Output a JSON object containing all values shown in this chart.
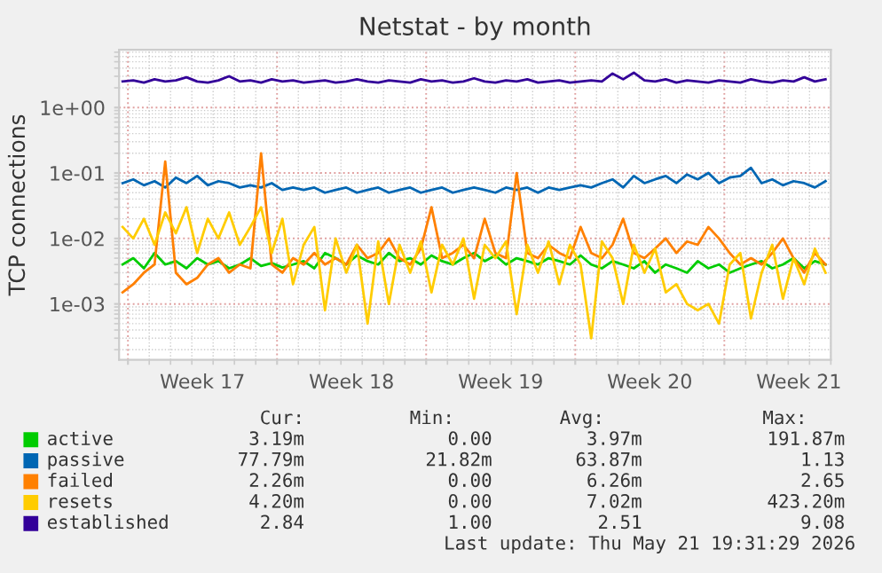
{
  "chart_data": {
    "type": "line",
    "title": "Netstat - by month",
    "ylabel": "TCP connections",
    "log": true,
    "grid": true,
    "legend": "bottom",
    "line_style": "solid",
    "marker": "none",
    "ylim": [
      0.00014,
      7.6
    ],
    "yticks": [
      {
        "value": 1,
        "label": "1e+00"
      },
      {
        "value": 0.1,
        "label": "1e-01"
      },
      {
        "value": 0.01,
        "label": "1e-02"
      },
      {
        "value": 0.001,
        "label": "1e-03"
      }
    ],
    "xlim": [
      "2026-04-19T14:00",
      "2026-05-23T00:00"
    ],
    "xticks": [
      {
        "value": "2026-04-20",
        "label": null
      },
      {
        "value": "2026-04-23T12:00",
        "label": "Week 17"
      },
      {
        "value": "2026-04-27",
        "label": null
      },
      {
        "value": "2026-04-30T12:00",
        "label": "Week 18"
      },
      {
        "value": "2026-05-04",
        "label": null
      },
      {
        "value": "2026-05-07T12:00",
        "label": "Week 19"
      },
      {
        "value": "2026-05-11",
        "label": null
      },
      {
        "value": "2026-05-14T12:00",
        "label": "Week 20"
      },
      {
        "value": "2026-05-18",
        "label": null
      },
      {
        "value": "2026-05-21T12:00",
        "label": "Week 21"
      }
    ],
    "x": [
      "2026-04-19T18:00",
      "2026-04-20T06:00",
      "2026-04-20T18:00",
      "2026-04-21T06:00",
      "2026-04-21T18:00",
      "2026-04-22T06:00",
      "2026-04-22T18:00",
      "2026-04-23T06:00",
      "2026-04-23T18:00",
      "2026-04-24T06:00",
      "2026-04-24T18:00",
      "2026-04-25T06:00",
      "2026-04-25T18:00",
      "2026-04-26T06:00",
      "2026-04-26T18:00",
      "2026-04-27T06:00",
      "2026-04-27T18:00",
      "2026-04-28T06:00",
      "2026-04-28T18:00",
      "2026-04-29T06:00",
      "2026-04-29T18:00",
      "2026-04-30T06:00",
      "2026-04-30T18:00",
      "2026-05-01T06:00",
      "2026-05-01T18:00",
      "2026-05-02T06:00",
      "2026-05-02T18:00",
      "2026-05-03T06:00",
      "2026-05-03T18:00",
      "2026-05-04T06:00",
      "2026-05-04T18:00",
      "2026-05-05T06:00",
      "2026-05-05T18:00",
      "2026-05-06T06:00",
      "2026-05-06T18:00",
      "2026-05-07T06:00",
      "2026-05-07T18:00",
      "2026-05-08T06:00",
      "2026-05-08T18:00",
      "2026-05-09T06:00",
      "2026-05-09T18:00",
      "2026-05-10T06:00",
      "2026-05-10T18:00",
      "2026-05-11T06:00",
      "2026-05-11T18:00",
      "2026-05-12T06:00",
      "2026-05-12T18:00",
      "2026-05-13T06:00",
      "2026-05-13T18:00",
      "2026-05-14T06:00",
      "2026-05-14T18:00",
      "2026-05-15T06:00",
      "2026-05-15T18:00",
      "2026-05-16T06:00",
      "2026-05-16T18:00",
      "2026-05-17T06:00",
      "2026-05-17T18:00",
      "2026-05-18T06:00",
      "2026-05-18T18:00",
      "2026-05-19T06:00",
      "2026-05-19T18:00",
      "2026-05-20T06:00",
      "2026-05-20T18:00",
      "2026-05-21T06:00",
      "2026-05-21T18:00",
      "2026-05-22T06:00",
      "2026-05-22T18:00"
    ],
    "series": [
      {
        "name": "active",
        "color": "#00cc00",
        "values": [
          0.004,
          0.005,
          0.0035,
          0.006,
          0.004,
          0.0045,
          0.0035,
          0.005,
          0.004,
          0.0045,
          0.0035,
          0.004,
          0.005,
          0.0038,
          0.0042,
          0.0036,
          0.004,
          0.0045,
          0.0035,
          0.006,
          0.005,
          0.004,
          0.0055,
          0.0045,
          0.004,
          0.006,
          0.0045,
          0.005,
          0.004,
          0.0055,
          0.0045,
          0.004,
          0.005,
          0.006,
          0.0045,
          0.0055,
          0.004,
          0.005,
          0.0045,
          0.004,
          0.005,
          0.0045,
          0.004,
          0.0055,
          0.004,
          0.0035,
          0.0045,
          0.004,
          0.0035,
          0.0045,
          0.003,
          0.004,
          0.0035,
          0.003,
          0.0045,
          0.0035,
          0.004,
          0.003,
          0.0035,
          0.004,
          0.0045,
          0.0035,
          0.004,
          0.005,
          0.0035,
          0.0045,
          0.004
        ]
      },
      {
        "name": "passive",
        "color": "#0066b3",
        "values": [
          0.07,
          0.08,
          0.065,
          0.075,
          0.06,
          0.085,
          0.07,
          0.09,
          0.065,
          0.075,
          0.07,
          0.06,
          0.065,
          0.06,
          0.07,
          0.055,
          0.06,
          0.055,
          0.06,
          0.05,
          0.055,
          0.06,
          0.05,
          0.055,
          0.06,
          0.05,
          0.055,
          0.06,
          0.05,
          0.055,
          0.06,
          0.05,
          0.055,
          0.06,
          0.055,
          0.05,
          0.06,
          0.055,
          0.06,
          0.05,
          0.06,
          0.055,
          0.06,
          0.065,
          0.06,
          0.07,
          0.08,
          0.06,
          0.09,
          0.07,
          0.08,
          0.09,
          0.07,
          0.095,
          0.08,
          0.1,
          0.07,
          0.085,
          0.09,
          0.12,
          0.07,
          0.08,
          0.065,
          0.075,
          0.07,
          0.06,
          0.075
        ]
      },
      {
        "name": "failed",
        "color": "#ff8000",
        "values": [
          0.0015,
          0.002,
          0.003,
          0.004,
          0.15,
          0.003,
          0.002,
          0.0025,
          0.004,
          0.005,
          0.003,
          0.004,
          0.0035,
          0.2,
          0.004,
          0.003,
          0.005,
          0.004,
          0.006,
          0.004,
          0.005,
          0.004,
          0.008,
          0.005,
          0.006,
          0.01,
          0.005,
          0.004,
          0.007,
          0.03,
          0.005,
          0.006,
          0.008,
          0.005,
          0.02,
          0.006,
          0.005,
          0.1,
          0.006,
          0.005,
          0.008,
          0.006,
          0.005,
          0.015,
          0.006,
          0.005,
          0.008,
          0.02,
          0.006,
          0.005,
          0.007,
          0.01,
          0.006,
          0.009,
          0.008,
          0.015,
          0.01,
          0.006,
          0.004,
          0.005,
          0.004,
          0.006,
          0.01,
          0.005,
          0.003,
          0.006,
          0.004
        ]
      },
      {
        "name": "resets",
        "color": "#ffcc00",
        "values": [
          0.015,
          0.01,
          0.02,
          0.008,
          0.025,
          0.012,
          0.03,
          0.006,
          0.02,
          0.01,
          0.025,
          0.008,
          0.015,
          0.03,
          0.006,
          0.02,
          0.002,
          0.008,
          0.015,
          0.0008,
          0.01,
          0.003,
          0.008,
          0.0005,
          0.009,
          0.001,
          0.008,
          0.003,
          0.009,
          0.0015,
          0.008,
          0.004,
          0.01,
          0.0012,
          0.008,
          0.005,
          0.009,
          0.0007,
          0.008,
          0.003,
          0.009,
          0.002,
          0.008,
          0.004,
          0.0003,
          0.009,
          0.005,
          0.001,
          0.008,
          0.003,
          0.007,
          0.0015,
          0.002,
          0.001,
          0.0008,
          0.001,
          0.0005,
          0.004,
          0.006,
          0.0006,
          0.003,
          0.008,
          0.0012,
          0.005,
          0.002,
          0.007,
          0.003
        ]
      },
      {
        "name": "established",
        "color": "#330099",
        "values": [
          2.5,
          2.6,
          2.4,
          2.7,
          2.5,
          2.6,
          2.9,
          2.5,
          2.4,
          2.6,
          3.0,
          2.5,
          2.6,
          2.4,
          2.7,
          2.5,
          2.6,
          2.4,
          2.5,
          2.6,
          2.4,
          2.5,
          2.7,
          2.5,
          2.4,
          2.6,
          2.5,
          2.4,
          2.7,
          2.5,
          2.6,
          2.4,
          2.5,
          2.8,
          2.5,
          2.4,
          2.6,
          2.5,
          2.7,
          2.4,
          2.5,
          2.6,
          2.4,
          2.5,
          2.6,
          2.5,
          3.3,
          2.7,
          3.4,
          2.6,
          2.5,
          2.7,
          2.4,
          2.6,
          2.5,
          2.4,
          2.6,
          2.5,
          2.4,
          2.7,
          2.5,
          2.4,
          2.6,
          2.5,
          2.9,
          2.5,
          2.7
        ]
      }
    ],
    "annotations": [
      "Cur:",
      "Min:",
      "Avg:",
      "Max:",
      "3.19m",
      "0.00",
      "3.97m",
      "191.87m",
      "77.79m",
      "21.82m",
      "63.87m",
      "1.13",
      "2.26m",
      "0.00",
      "6.26m",
      "2.65",
      "4.20m",
      "0.00",
      "7.02m",
      "423.20m",
      "2.84",
      "1.00",
      "2.51",
      "9.08",
      "Last update: Thu May 21 19:31:29 2026"
    ]
  }
}
